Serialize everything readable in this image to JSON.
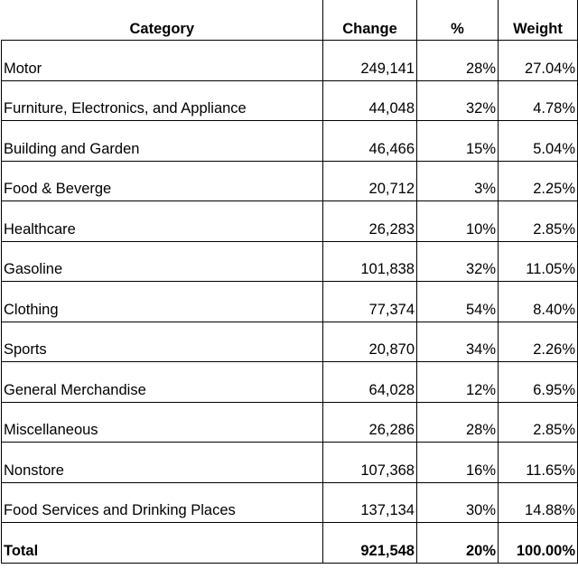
{
  "headers": {
    "category": "Category",
    "change": "Change",
    "percent": "%",
    "weight": "Weight"
  },
  "rows": [
    {
      "category": "Motor",
      "change": "249,141",
      "percent": "28%",
      "weight": "27.04%"
    },
    {
      "category": "Furniture, Electronics, and Appliance",
      "change": "44,048",
      "percent": "32%",
      "weight": "4.78%"
    },
    {
      "category": "Building and Garden",
      "change": "46,466",
      "percent": "15%",
      "weight": "5.04%"
    },
    {
      "category": "Food & Beverge",
      "change": "20,712",
      "percent": "3%",
      "weight": "2.25%"
    },
    {
      "category": "Healthcare",
      "change": "26,283",
      "percent": "10%",
      "weight": "2.85%"
    },
    {
      "category": "Gasoline",
      "change": "101,838",
      "percent": "32%",
      "weight": "11.05%"
    },
    {
      "category": "Clothing",
      "change": "77,374",
      "percent": "54%",
      "weight": "8.40%"
    },
    {
      "category": "Sports",
      "change": "20,870",
      "percent": "34%",
      "weight": "2.26%"
    },
    {
      "category": "General Merchandise",
      "change": "64,028",
      "percent": "12%",
      "weight": "6.95%"
    },
    {
      "category": "Miscellaneous",
      "change": "26,286",
      "percent": "28%",
      "weight": "2.85%"
    },
    {
      "category": "Nonstore",
      "change": "107,368",
      "percent": "16%",
      "weight": "11.65%"
    },
    {
      "category": "Food Services and Drinking Places",
      "change": "137,134",
      "percent": "30%",
      "weight": "14.88%"
    }
  ],
  "total": {
    "category": "Total",
    "change": "921,548",
    "percent": "20%",
    "weight": "100.00%"
  }
}
